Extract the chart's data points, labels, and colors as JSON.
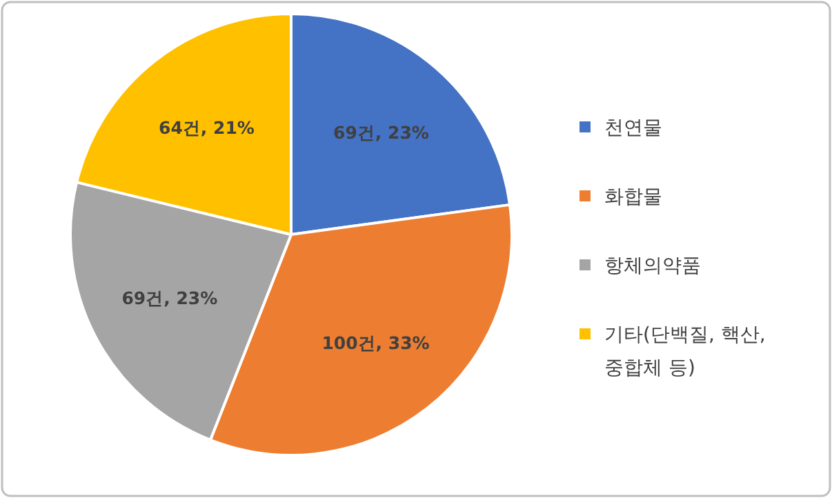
{
  "chart_data": {
    "type": "pie",
    "categories": [
      "천연물",
      "화합물",
      "항체의약품",
      "기타(단백질, 핵산, 중합체 등)"
    ],
    "values": [
      69,
      100,
      69,
      64
    ],
    "colors": [
      "#4472c4",
      "#ed7d31",
      "#a5a5a5",
      "#ffc000"
    ],
    "value_labels": [
      "69건, 23%",
      "100건, 33%",
      "69건, 23%",
      "64건, 21%"
    ],
    "legend": "right"
  }
}
